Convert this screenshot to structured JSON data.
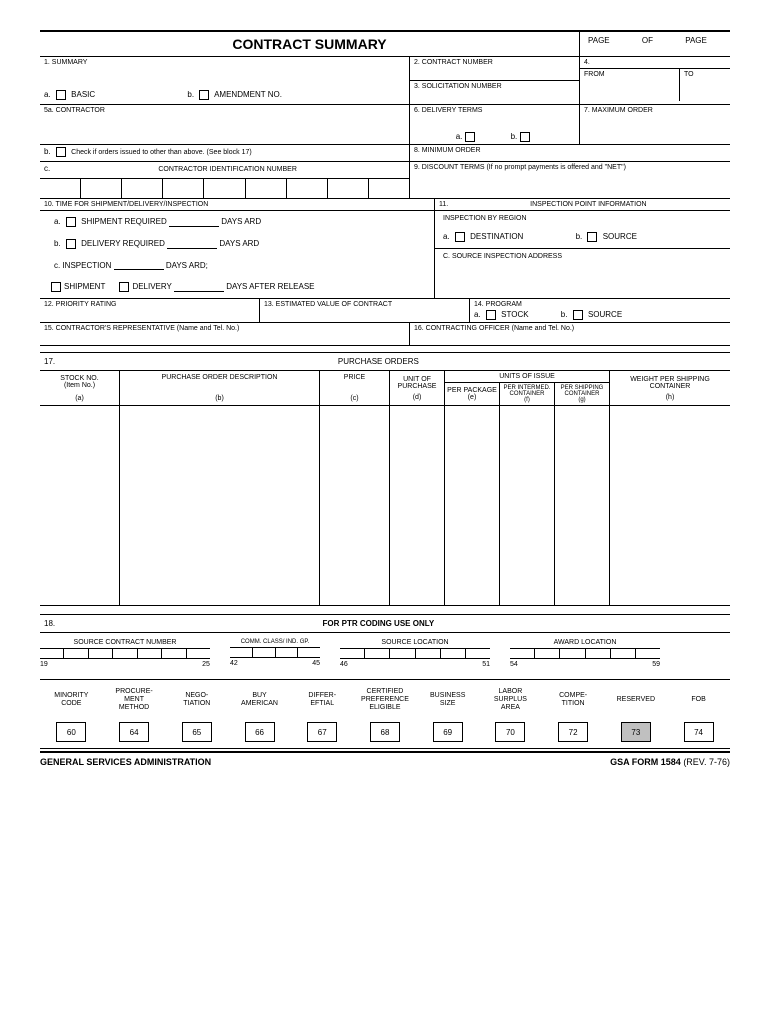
{
  "title": "CONTRACT SUMMARY",
  "header": {
    "page": "PAGE",
    "of": "OF",
    "page2": "PAGE"
  },
  "f1": {
    "label": "1. SUMMARY",
    "a": "a.",
    "basic": "BASIC",
    "b": "b.",
    "amend": "AMENDMENT NO."
  },
  "f2": "2. CONTRACT NUMBER",
  "f3": "3. SOLICITATION NUMBER",
  "f4": {
    "num": "4.",
    "from": "FROM",
    "to": "TO"
  },
  "f5a": "5a. CONTRACTOR",
  "f5b": {
    "b": "b.",
    "text": "Check if orders issued to other than above. (See block 17)"
  },
  "f5c": {
    "c": "c.",
    "text": "CONTRACTOR IDENTIFICATION NUMBER"
  },
  "f6": {
    "label": "6. DELIVERY TERMS",
    "a": "a.",
    "b": "b."
  },
  "f7": "7. MAXIMUM ORDER",
  "f8": "8. MINIMUM ORDER",
  "f9": "9. DISCOUNT TERMS (If no prompt payments is offered and \"NET\")",
  "f10": {
    "label": "10. TIME FOR SHIPMENT/DELIVERY/INSPECTION",
    "a": "a.",
    "ship": "SHIPMENT REQUIRED",
    "days1": "DAYS ARD",
    "b": "b.",
    "del": "DELIVERY REQUIRED",
    "days2": "DAYS ARD",
    "c": "c. INSPECTION",
    "days3": "DAYS ARD;",
    "shipment": "SHIPMENT",
    "delivery": "DELIVERY",
    "after": "DAYS AFTER RELEASE"
  },
  "f11": {
    "label": "11.",
    "title": "INSPECTION POINT INFORMATION",
    "region": "INSPECTION BY REGION",
    "a": "a.",
    "dest": "DESTINATION",
    "b": "b.",
    "src": "SOURCE",
    "c": "C. SOURCE INSPECTION ADDRESS"
  },
  "f12": "12. PRIORITY RATING",
  "f13": "13. ESTIMATED VALUE OF CONTRACT",
  "f14": {
    "label": "14. PROGRAM",
    "a": "a.",
    "stock": "STOCK",
    "b": "b.",
    "src": "SOURCE"
  },
  "f15": "15. CONTRACTOR'S REPRESENTATIVE (Name and Tel. No.)",
  "f16": "16. CONTRACTING OFFICER (Name and Tel. No.)",
  "f17": {
    "num": "17.",
    "title": "PURCHASE ORDERS",
    "stock": "STOCK NO.",
    "item": "(Item No.)",
    "a": "(a)",
    "desc": "PURCHASE ORDER DESCRIPTION",
    "b": "(b)",
    "price": "PRICE",
    "c": "(c)",
    "unit": "UNIT OF PURCHASE",
    "d": "(d)",
    "units": "UNITS OF ISSUE",
    "per_pkg": "PER PACKAGE",
    "e": "(e)",
    "per_int": "PER INTERMED. CONTAINER",
    "f": "(f)",
    "per_ship": "PER SHIPPING CONTAINER",
    "g": "(g)",
    "weight": "WEIGHT PER SHIPPING CONTAINER",
    "h": "(h)"
  },
  "f18": {
    "num": "18.",
    "title": "FOR PTR CODING USE ONLY"
  },
  "coding": {
    "src_contract": "SOURCE CONTRACT NUMBER",
    "n19": "19",
    "n25": "25",
    "comm": "COMM. CLASS/ IND. GP.",
    "n42": "42",
    "n45": "45",
    "src_loc": "SOURCE LOCATION",
    "n46": "46",
    "n51": "51",
    "award": "AWARD LOCATION",
    "n54": "54",
    "n59": "59"
  },
  "codes": [
    {
      "label": "MINORITY CODE",
      "num": "60"
    },
    {
      "label": "PROCURE-MENT METHOD",
      "num": "64"
    },
    {
      "label": "NEGO-TIATION",
      "num": "65"
    },
    {
      "label": "BUY AMERICAN",
      "num": "66"
    },
    {
      "label": "DIFFER-EFTIAL",
      "num": "67"
    },
    {
      "label": "CERTIFIED PREFERENCE ELIGIBLE",
      "num": "68"
    },
    {
      "label": "BUSINESS SIZE",
      "num": "69"
    },
    {
      "label": "LABOR SURPLUS AREA",
      "num": "70"
    },
    {
      "label": "COMPE-TITION",
      "num": "72"
    },
    {
      "label": "RESERVED",
      "num": "73",
      "shaded": true
    },
    {
      "label": "FOB",
      "num": "74"
    }
  ],
  "footer": {
    "agency": "GENERAL SERVICES ADMINISTRATION",
    "form": "GSA FORM 1584 ",
    "rev": "(REV. 7-76)"
  }
}
